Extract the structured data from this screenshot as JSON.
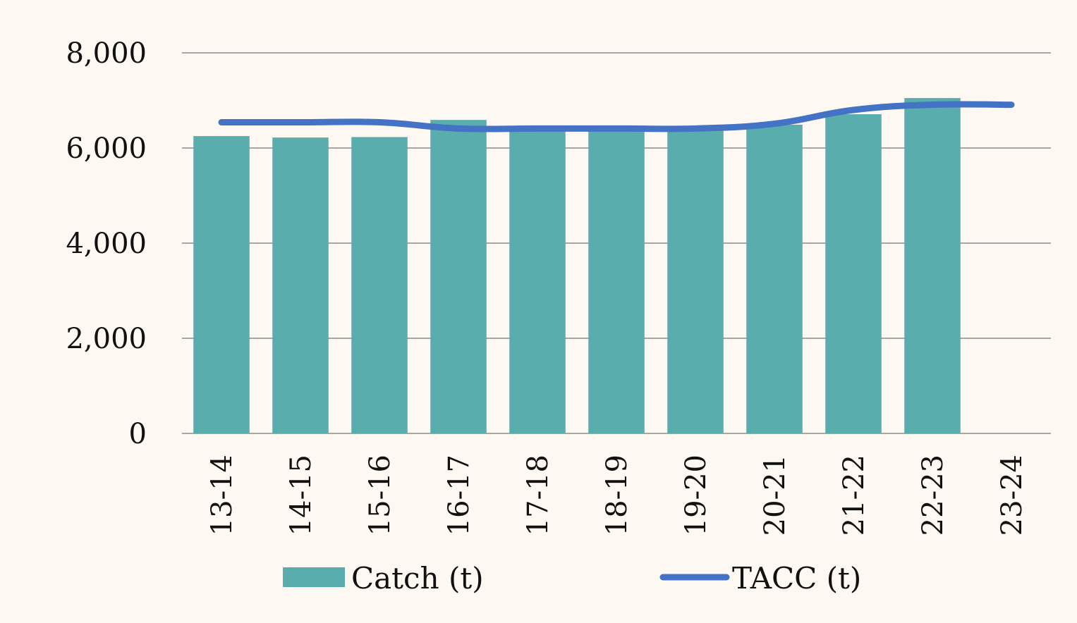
{
  "chart_data": {
    "type": "bar",
    "categories": [
      "13-14",
      "14-15",
      "15-16",
      "16-17",
      "17-18",
      "18-19",
      "19-20",
      "20-21",
      "21-22",
      "22-23",
      "23-24"
    ],
    "series": [
      {
        "name": "Catch (t)",
        "kind": "bar",
        "color": "#5aadad",
        "values": [
          6250,
          6220,
          6230,
          6590,
          6390,
          6390,
          6390,
          6490,
          6710,
          7050,
          null
        ]
      },
      {
        "name": "TACC (t)",
        "kind": "line",
        "color": "#4472c4",
        "values": [
          6540,
          6540,
          6540,
          6410,
          6410,
          6410,
          6410,
          6510,
          6800,
          6910,
          6910
        ]
      }
    ],
    "ylim": [
      0,
      8000
    ],
    "yticks": [
      "0",
      "2,000",
      "4,000",
      "6,000",
      "8,000"
    ],
    "ytick_values": [
      0,
      2000,
      4000,
      6000,
      8000
    ],
    "grid": true,
    "legend_position": "bottom",
    "title": "",
    "xlabel": "",
    "ylabel": ""
  }
}
